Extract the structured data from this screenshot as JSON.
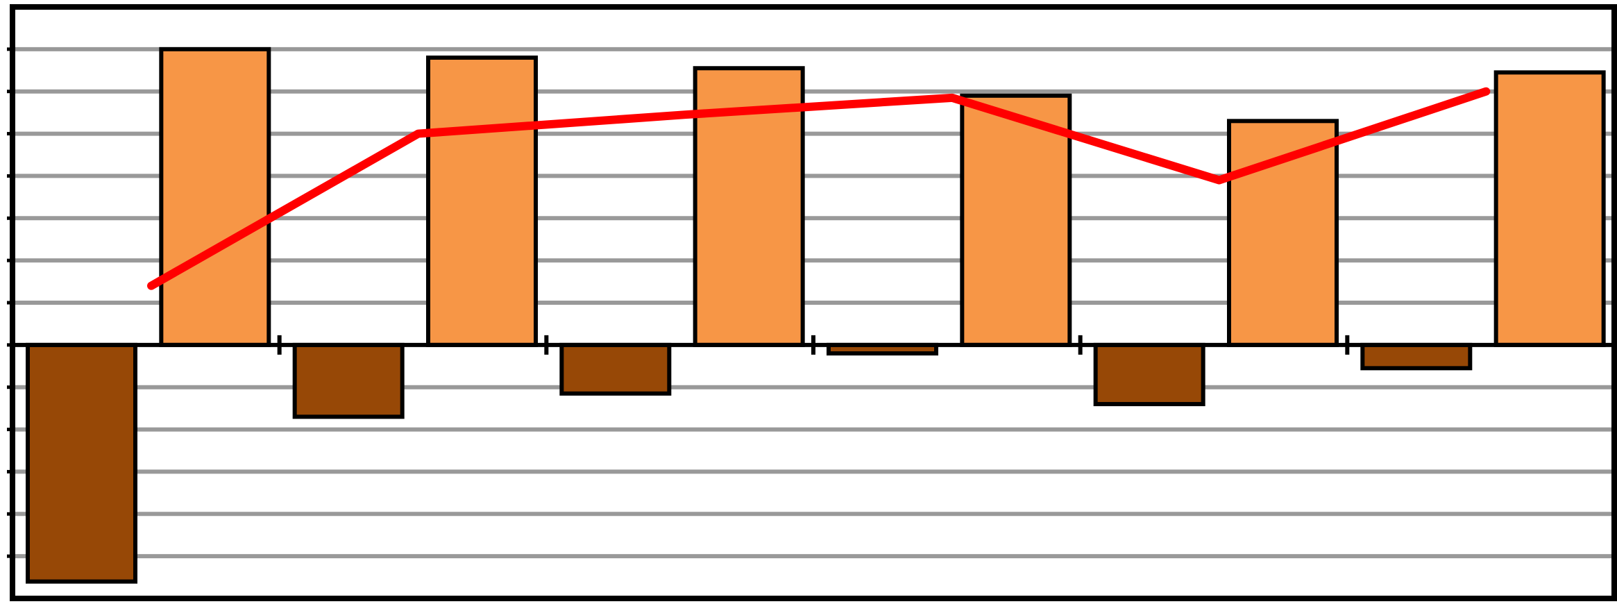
{
  "colors": {
    "background": "#ffffff",
    "frame": "#000000",
    "grid": "#999999",
    "series_positive": "#f79646",
    "series_negative": "#974806",
    "line": "#ff0000"
  },
  "chart_data": {
    "type": "bar",
    "title": "",
    "xlabel": "",
    "ylabel": "",
    "grid": true,
    "legend": "none",
    "axis_labels_visible": false,
    "ylim": [
      -6,
      8
    ],
    "groups": 6,
    "series": [
      {
        "kind": "bar",
        "color": "#974806",
        "values": [
          -5.6,
          -1.7,
          -1.15,
          -0.2,
          -1.4,
          -0.55
        ]
      },
      {
        "kind": "bar",
        "color": "#f79646",
        "values": [
          7.0,
          6.8,
          6.55,
          5.9,
          5.3,
          6.45
        ]
      },
      {
        "kind": "line",
        "color": "#ff0000",
        "values": [
          1.4,
          5.0,
          5.45,
          5.85,
          3.9,
          6.0
        ]
      }
    ]
  }
}
